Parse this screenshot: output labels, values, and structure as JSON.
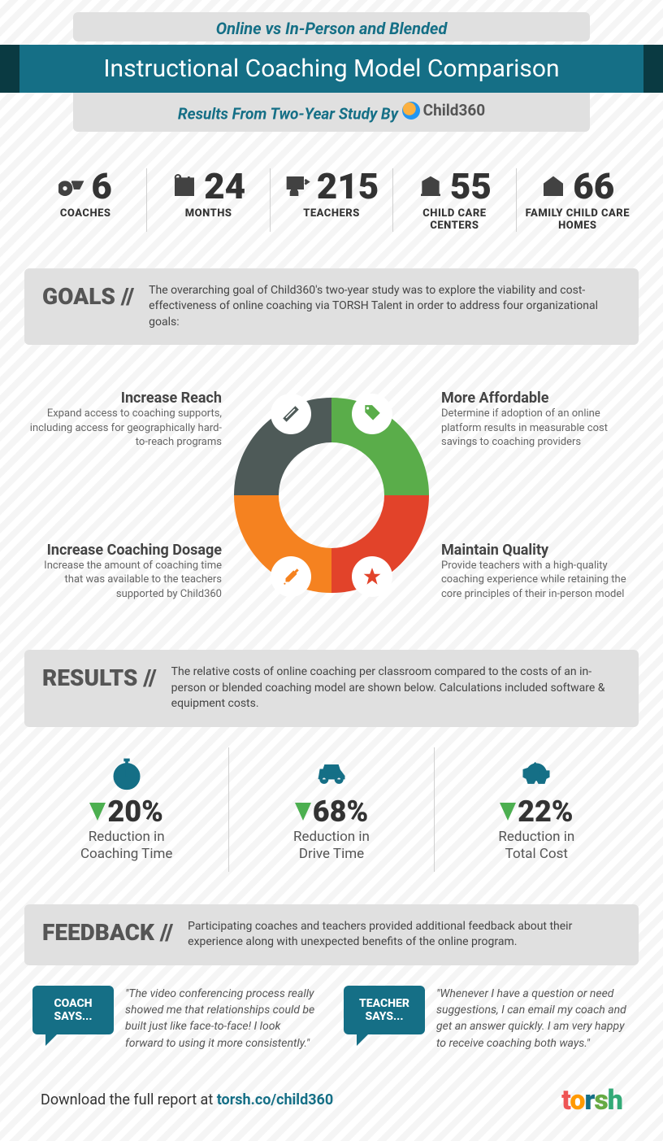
{
  "header": {
    "pretitle": "Online vs In-Person and Blended",
    "title": "Instructional Coaching Model Comparison",
    "byline_prefix": "Results From Two-Year Study By",
    "byline_brand": "Child360"
  },
  "stats": [
    {
      "num": "6",
      "label": "COACHES",
      "icon": "whistle"
    },
    {
      "num": "24",
      "label": "MONTHS",
      "icon": "calendar"
    },
    {
      "num": "215",
      "label": "TEACHERS",
      "icon": "teacher"
    },
    {
      "num": "55",
      "label": "CHILD CARE CENTERS",
      "icon": "building"
    },
    {
      "num": "66",
      "label": "FAMILY CHILD CARE HOMES",
      "icon": "house"
    }
  ],
  "goals_section": {
    "title": "GOALS //",
    "desc": "The overarching goal of Child360's two-year study was to explore the viability and cost-effectiveness of online coaching via TORSH Talent in order to address four organizational goals:"
  },
  "goals": {
    "tl": {
      "title": "Increase Reach",
      "text": "Expand access to coaching supports, including access for geographically hard-to-reach programs",
      "color": "#4e5a58"
    },
    "tr": {
      "title": "More Affordable",
      "text": "Determine if adoption of an online platform results in measurable cost savings to coaching providers",
      "color": "#5aad4a"
    },
    "bl": {
      "title": "Increase Coaching Dosage",
      "text": "Increase the amount of coaching time that was available to the teachers supported by Child360",
      "color": "#f58220"
    },
    "br": {
      "title": "Maintain Quality",
      "text": "Provide teachers with a high-quality coaching experience while retaining the core principles of their in-person model",
      "color": "#e2432a"
    }
  },
  "donut": {
    "outer_r": 120,
    "inner_r": 65
  },
  "results_section": {
    "title": "RESULTS //",
    "desc": "The relative costs of online coaching per classroom compared to the costs of an in-person or blended coaching model are shown below. Calculations included software & equipment costs."
  },
  "results": [
    {
      "icon": "stopwatch",
      "value": "20%",
      "label": "Reduction in Coaching Time"
    },
    {
      "icon": "car",
      "value": "68%",
      "label": "Reduction in Drive Time"
    },
    {
      "icon": "piggy",
      "value": "22%",
      "label": "Reduction in Total Cost"
    }
  ],
  "feedback_section": {
    "title": "FEEDBACK //",
    "desc": "Participating coaches and teachers provided additional feedback about their experience along with unexpected benefits of the online program."
  },
  "feedback": [
    {
      "who": "COACH SAYS...",
      "quote": "\"The video conferencing process really showed me that relationships could be built just like face-to-face! I look forward to using it more consistently.\""
    },
    {
      "who": "TEACHER SAYS...",
      "quote": "\"Whenever I have a question or need suggestions, I can email my coach and get an answer quickly. I am very happy to receive coaching both ways.\""
    }
  ],
  "footer": {
    "text_prefix": "Download the full report at ",
    "link_text": "torsh.co/child360",
    "logo": "torsh"
  }
}
